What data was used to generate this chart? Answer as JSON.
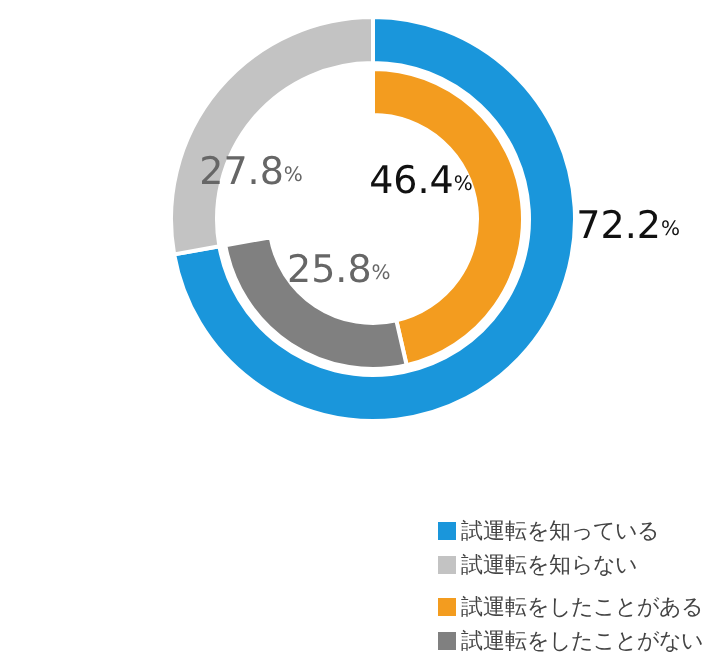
{
  "chart_data": {
    "type": "donut",
    "categories": [
      "試運転を知っている",
      "試運転を知らない",
      "試運転をしたことがある",
      "試運転をしたことがない"
    ],
    "colors": [
      "#1a96db",
      "#c3c3c3",
      "#f39c1f",
      "#808080"
    ],
    "legend": "bottom right",
    "series": [
      {
        "values": [
          72.2,
          27.8,
          null,
          null
        ],
        "value_labels": [
          "72.2%",
          "27.8%",
          null,
          null
        ]
      },
      {
        "values": [
          null,
          null,
          46.4,
          25.8
        ],
        "value_labels": [
          null,
          null,
          "46.4%",
          "25.8%"
        ]
      }
    ]
  }
}
